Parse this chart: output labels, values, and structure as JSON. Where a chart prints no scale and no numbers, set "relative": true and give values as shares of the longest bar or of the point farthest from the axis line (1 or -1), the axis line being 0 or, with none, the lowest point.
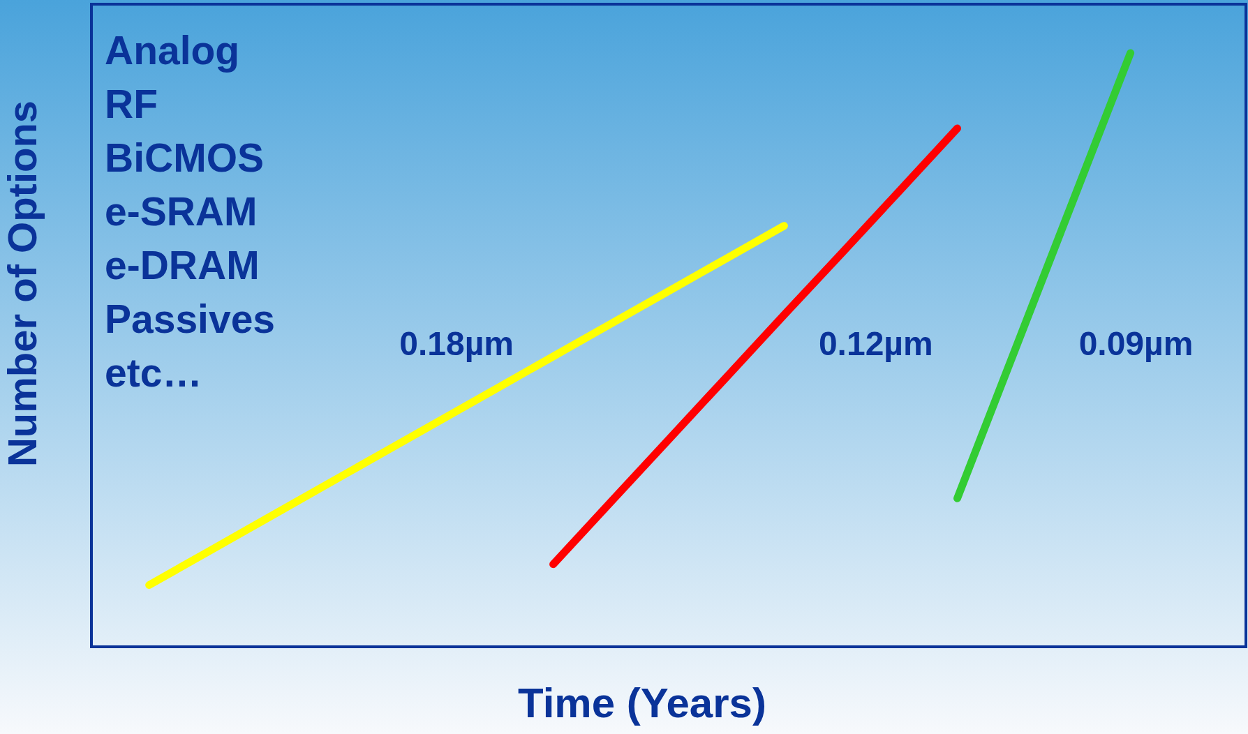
{
  "chart_data": {
    "type": "line",
    "relative": true,
    "xlabel": "Time (Years)",
    "ylabel": "Number of Options",
    "grid": false,
    "legend": false,
    "marker": "none",
    "line_style": "solid",
    "categories": [
      null,
      null,
      null,
      null,
      null,
      null,
      null,
      null,
      null,
      null,
      null,
      null,
      null,
      null,
      null,
      null,
      null,
      null,
      null,
      null,
      null
    ],
    "annotations": [
      "Analog",
      "RF",
      "BiCMOS",
      "e-SRAM",
      "e-DRAM",
      "Passives",
      "etc…"
    ],
    "series": [
      {
        "name": "0.18µm",
        "color": "#ffff00",
        "values": [
          null,
          0.104,
          0.159,
          0.214,
          0.269,
          0.324,
          0.379,
          0.434,
          0.489,
          0.544,
          0.599,
          0.654,
          0.709,
          null,
          null,
          null,
          null,
          null,
          null,
          null,
          null
        ]
      },
      {
        "name": "0.12µm",
        "color": "#ff0000",
        "values": [
          null,
          null,
          null,
          null,
          null,
          null,
          null,
          null,
          0.139,
          0.244,
          0.349,
          0.454,
          0.559,
          0.663,
          0.768,
          0.873,
          null,
          null,
          null,
          null,
          null
        ]
      },
      {
        "name": "0.09µm",
        "color": "#33cc33",
        "values": [
          null,
          null,
          null,
          null,
          null,
          null,
          null,
          null,
          null,
          null,
          null,
          null,
          null,
          null,
          null,
          0.25,
          0.5,
          0.75,
          1,
          null,
          null
        ]
      }
    ]
  }
}
